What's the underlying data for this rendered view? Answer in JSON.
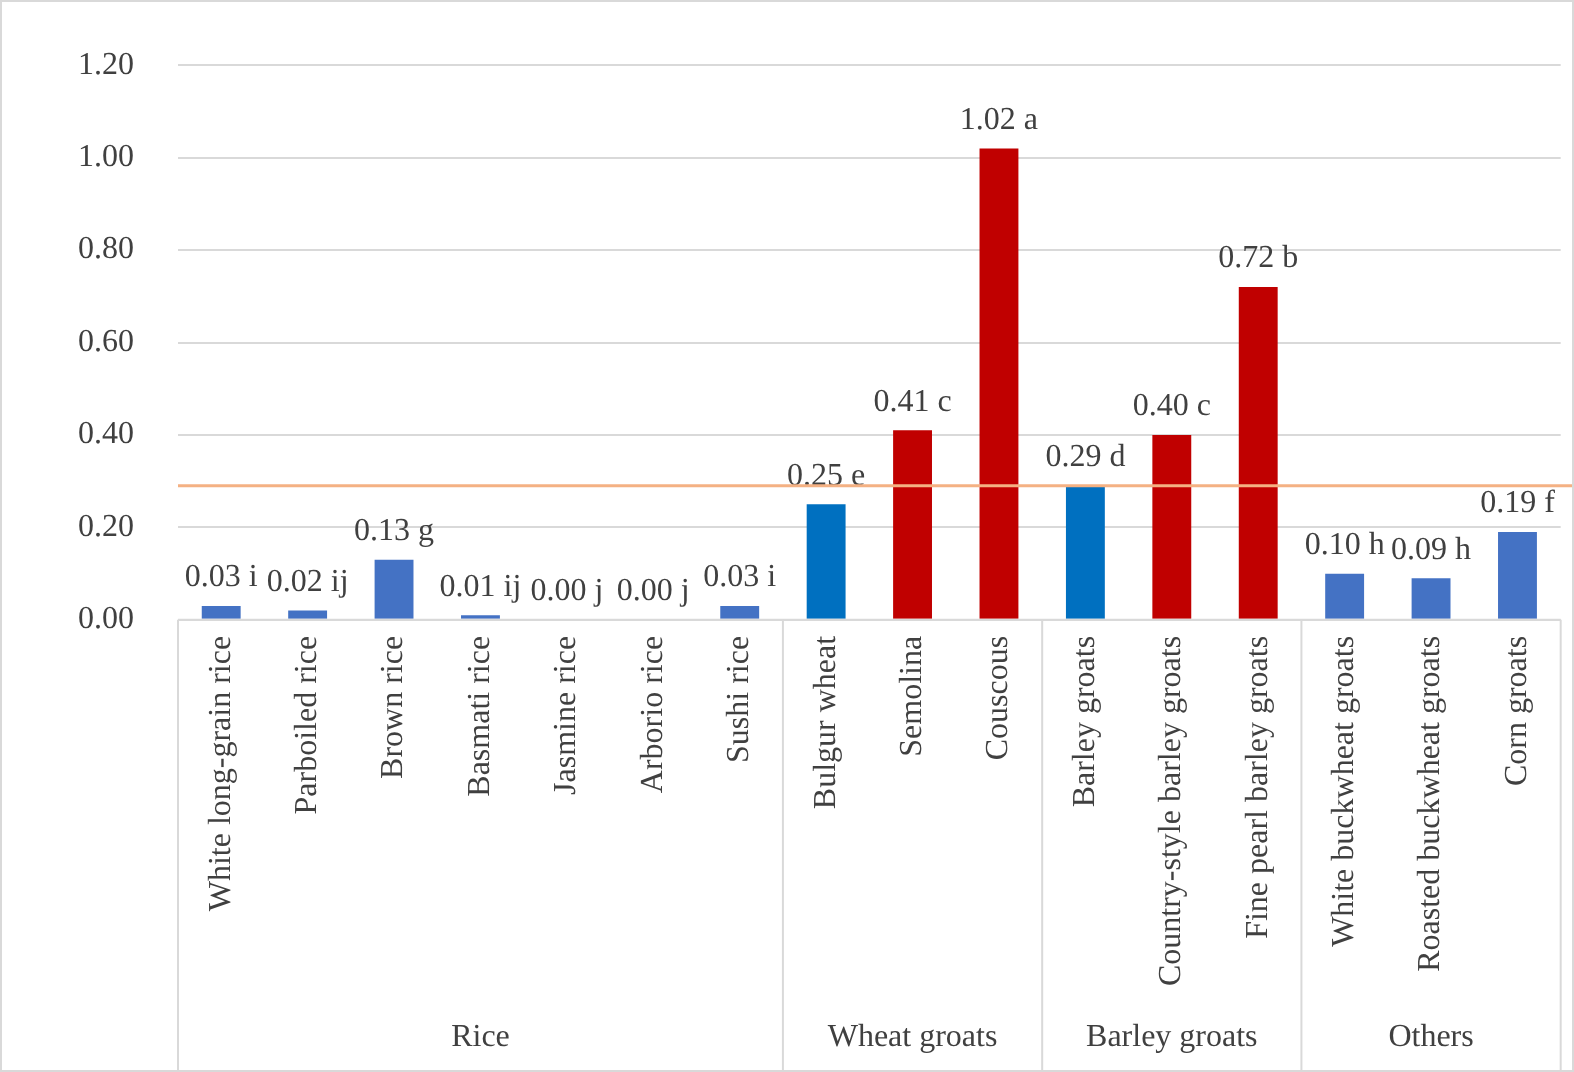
{
  "chart_data": {
    "type": "bar",
    "categories": [
      "White long-grain rice",
      "Parboiled rice",
      "Brown rice",
      "Basmati rice",
      "Jasmine rice",
      "Arborio rice",
      "Sushi rice",
      "Bulgur wheat",
      "Semolina",
      "Couscous",
      "Barley groats",
      "Country-style barley groats",
      "Fine pearl barley groats",
      "White buckwheat groats",
      "Roasted buckwheat groats",
      "Corn groats"
    ],
    "values": [
      0.03,
      0.02,
      0.13,
      0.01,
      0.0,
      0.0,
      0.03,
      0.25,
      0.41,
      1.02,
      0.29,
      0.4,
      0.72,
      0.1,
      0.09,
      0.19
    ],
    "value_labels": [
      "0.03 i",
      "0.02 ij",
      "0.13 g",
      "0.01 ij",
      "0.00 j",
      "0.00 j",
      "0.03 i",
      "0.25 e",
      "0.41 c",
      "1.02 a",
      "0.29 d",
      "0.40 c",
      "0.72 b",
      "0.10 h",
      "0.09 h",
      "0.19 f"
    ],
    "colors": [
      "#4472c4",
      "#4472c4",
      "#4472c4",
      "#4472c4",
      "#4472c4",
      "#4472c4",
      "#4472c4",
      "#0070c0",
      "#c00000",
      "#c00000",
      "#0070c0",
      "#c00000",
      "#c00000",
      "#4472c4",
      "#4472c4",
      "#4472c4"
    ],
    "ylim": [
      0,
      1.2
    ],
    "yticks": [
      {
        "value": 0,
        "label": "0.00"
      },
      {
        "value": 0.2,
        "label": "0.20"
      },
      {
        "value": 0.4,
        "label": "0.40"
      },
      {
        "value": 0.6,
        "label": "0.60"
      },
      {
        "value": 0.8,
        "label": "0.80"
      },
      {
        "value": 1,
        "label": "1.00"
      },
      {
        "value": 1.2,
        "label": "1.20"
      }
    ],
    "grid": "y",
    "ref_lines": [
      {
        "axis": "y",
        "value": 0.29,
        "color": "#f4b183"
      }
    ],
    "annotations": [
      "Rice",
      "Wheat groats",
      "Barley groats",
      "Others"
    ]
  }
}
